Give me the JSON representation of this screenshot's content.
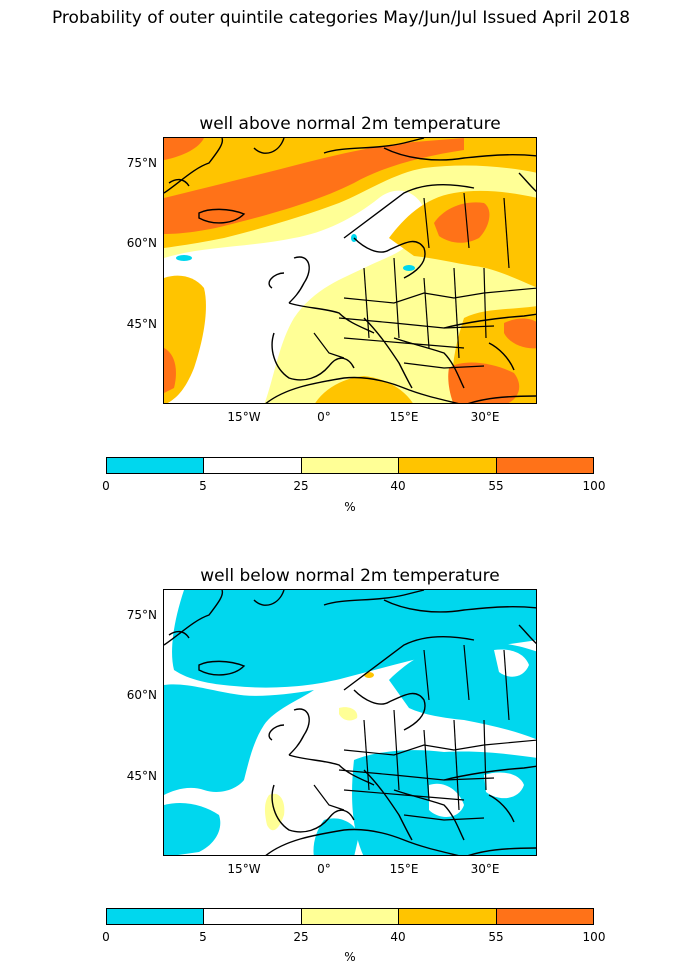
{
  "suptitle": "Probability of outer quintile categories May/Jun/Jul Issued April 2018",
  "maps": [
    {
      "title": "well above normal 2m temperature"
    },
    {
      "title": "well below normal 2m temperature"
    }
  ],
  "lat_labels": [
    "75°N",
    "60°N",
    "45°N"
  ],
  "lon_labels": [
    "15°W",
    "0°",
    "15°E",
    "30°E"
  ],
  "colorbar": {
    "labels": [
      "0",
      "5",
      "25",
      "40",
      "55",
      "100"
    ],
    "colors": [
      "#00d7ee",
      "#ffffff",
      "#ffff96",
      "#ffc400",
      "#ff7218"
    ],
    "unit": "%"
  },
  "colors": {
    "cyan": "#00d7ee",
    "white": "#ffffff",
    "yellow": "#ffff96",
    "orange": "#ffc400",
    "red": "#ff7218"
  }
}
